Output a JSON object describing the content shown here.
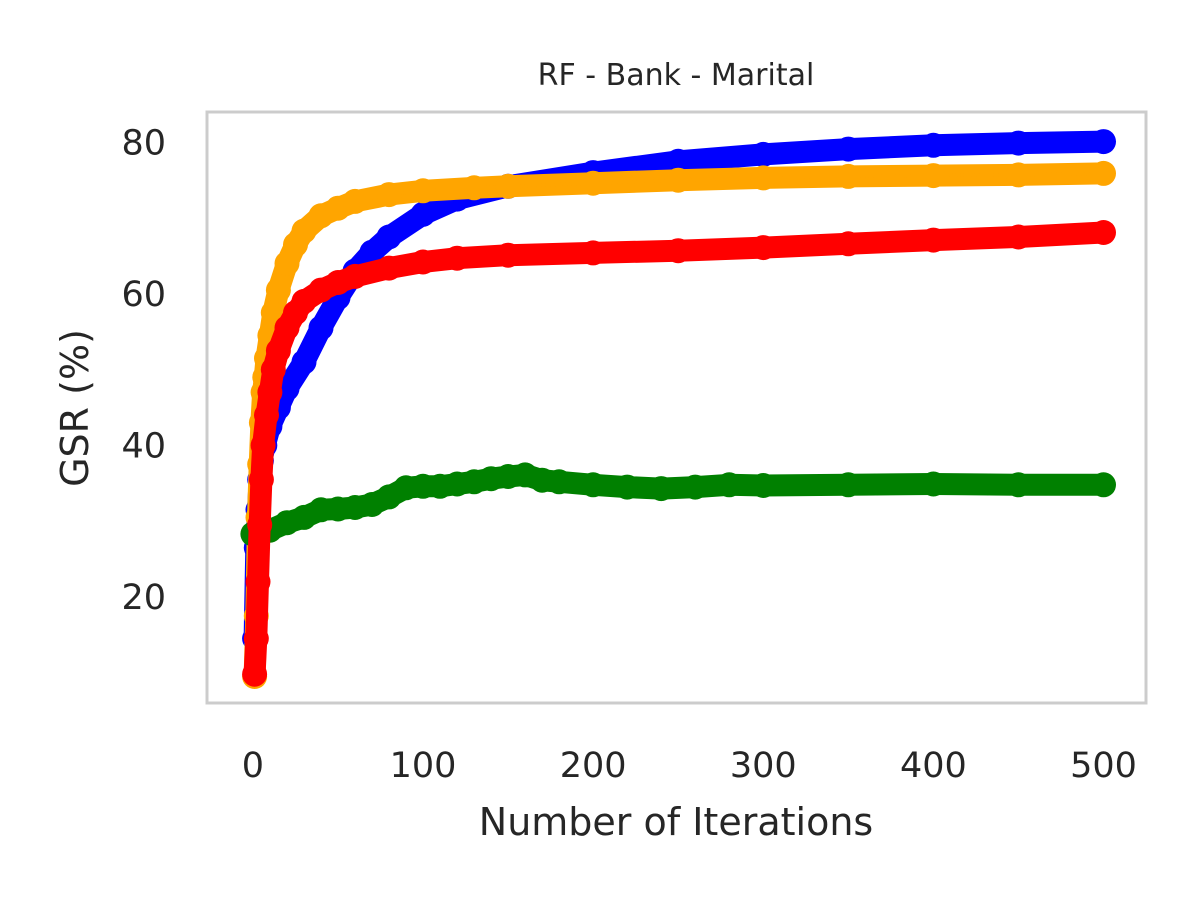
{
  "chart_data": {
    "type": "line",
    "title": "RF - Bank - Marital",
    "xlabel": "Number of Iterations",
    "ylabel": "GSR (%)",
    "xlim": [
      -27,
      525
    ],
    "ylim": [
      6,
      84
    ],
    "xticks": [
      "0",
      "100",
      "200",
      "300",
      "400",
      "500"
    ],
    "yticks": [
      "20",
      "40",
      "60",
      "80"
    ],
    "grid": false,
    "legend": false,
    "series": [
      {
        "color": "#0000ff",
        "x": [
          1,
          2,
          3,
          4,
          5,
          7,
          10,
          15,
          20,
          30,
          40,
          50,
          60,
          70,
          80,
          100,
          120,
          150,
          200,
          250,
          300,
          350,
          400,
          450,
          500
        ],
        "y": [
          14.5,
          26.5,
          31.5,
          35.5,
          38,
          40,
          42.5,
          45,
          47.5,
          51,
          55.5,
          59.5,
          63,
          65.5,
          67.5,
          70.5,
          72.5,
          74.2,
          76,
          77.5,
          78.4,
          79.1,
          79.6,
          79.9,
          80.1
        ]
      },
      {
        "color": "#ffa500",
        "x": [
          1,
          2,
          3,
          4,
          5,
          6,
          7,
          8,
          10,
          12,
          15,
          20,
          25,
          30,
          40,
          50,
          60,
          80,
          100,
          130,
          150,
          200,
          250,
          300,
          350,
          400,
          450,
          500
        ],
        "y": [
          9.5,
          17.5,
          30.5,
          37.5,
          43,
          47,
          49,
          51.5,
          54.5,
          57.5,
          60.5,
          64,
          66.5,
          68.3,
          70.3,
          71.3,
          72.2,
          73.1,
          73.6,
          74,
          74.2,
          74.6,
          75,
          75.3,
          75.5,
          75.6,
          75.7,
          75.9
        ]
      },
      {
        "color": "#008000",
        "x": [
          0,
          10,
          20,
          30,
          40,
          50,
          60,
          70,
          80,
          90,
          100,
          110,
          120,
          130,
          140,
          150,
          160,
          170,
          180,
          200,
          220,
          240,
          260,
          280,
          300,
          350,
          400,
          450,
          500
        ],
        "y": [
          28.3,
          28.8,
          29.8,
          30.5,
          31.5,
          31.6,
          31.8,
          32.2,
          33.2,
          34.4,
          34.6,
          34.6,
          34.9,
          35.2,
          35.6,
          35.9,
          36.1,
          35.4,
          35.2,
          34.8,
          34.5,
          34.3,
          34.5,
          34.8,
          34.7,
          34.8,
          34.9,
          34.8,
          34.8
        ]
      },
      {
        "color": "#ff0000",
        "x": [
          1,
          2,
          3,
          4,
          5,
          6,
          8,
          10,
          12,
          15,
          20,
          25,
          30,
          40,
          50,
          60,
          80,
          100,
          120,
          150,
          200,
          250,
          300,
          350,
          400,
          450,
          500
        ],
        "y": [
          9.8,
          14.5,
          22,
          29.5,
          35.5,
          40,
          44,
          47,
          50,
          52.5,
          55.5,
          57.5,
          59,
          60.5,
          61.5,
          62.3,
          63.4,
          64.2,
          64.7,
          65.1,
          65.4,
          65.7,
          66.1,
          66.6,
          67.1,
          67.5,
          68.1
        ]
      }
    ]
  }
}
